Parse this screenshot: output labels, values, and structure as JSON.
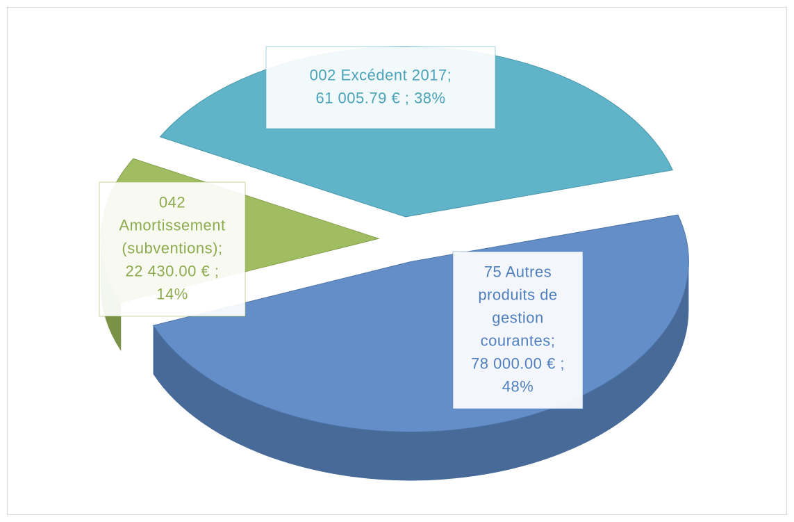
{
  "chart_data": {
    "type": "pie3d",
    "values": [
      61005.79,
      78000.0,
      22430.0
    ],
    "colors": [
      "#56b0c7",
      "#5b88c4",
      "#9bbb59"
    ],
    "label_colors": [
      "#4aa3bb",
      "#4f7fbf",
      "#8cab4e"
    ],
    "data_labels": [
      [
        "002 Excédent  2017;",
        "61 005.79 € ; 38%"
      ],
      [
        "75 Autres",
        "produits de",
        "gestion",
        "courantes;",
        "78 000.00 € ;",
        "48%"
      ],
      [
        "042",
        "Amortissement",
        "(subventions);",
        "22 430.00 € ;",
        "14%"
      ]
    ]
  }
}
